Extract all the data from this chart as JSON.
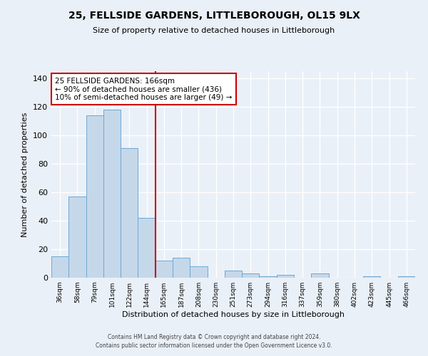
{
  "title": "25, FELLSIDE GARDENS, LITTLEBOROUGH, OL15 9LX",
  "subtitle": "Size of property relative to detached houses in Littleborough",
  "xlabel": "Distribution of detached houses by size in Littleborough",
  "ylabel": "Number of detached properties",
  "bar_labels": [
    "36sqm",
    "58sqm",
    "79sqm",
    "101sqm",
    "122sqm",
    "144sqm",
    "165sqm",
    "187sqm",
    "208sqm",
    "230sqm",
    "251sqm",
    "273sqm",
    "294sqm",
    "316sqm",
    "337sqm",
    "359sqm",
    "380sqm",
    "402sqm",
    "423sqm",
    "445sqm",
    "466sqm"
  ],
  "bar_values": [
    15,
    57,
    114,
    118,
    91,
    42,
    12,
    14,
    8,
    0,
    5,
    3,
    1,
    2,
    0,
    3,
    0,
    0,
    1,
    0,
    1
  ],
  "bar_color": "#c5d8ea",
  "bar_edgecolor": "#6fa8d4",
  "vline_x": 6,
  "vline_color": "#cc0000",
  "annotation_line1": "25 FELLSIDE GARDENS: 166sqm",
  "annotation_line2": "← 90% of detached houses are smaller (436)",
  "annotation_line3": "10% of semi-detached houses are larger (49) →",
  "annotation_boxcolor": "white",
  "annotation_edgecolor": "#cc0000",
  "ylim": [
    0,
    145
  ],
  "yticks": [
    0,
    20,
    40,
    60,
    80,
    100,
    120,
    140
  ],
  "footer1": "Contains HM Land Registry data © Crown copyright and database right 2024.",
  "footer2": "Contains public sector information licensed under the Open Government Licence v3.0.",
  "fig_facecolor": "#eaf0f7",
  "ax_facecolor": "#eaf0f7",
  "grid_color": "#ffffff"
}
